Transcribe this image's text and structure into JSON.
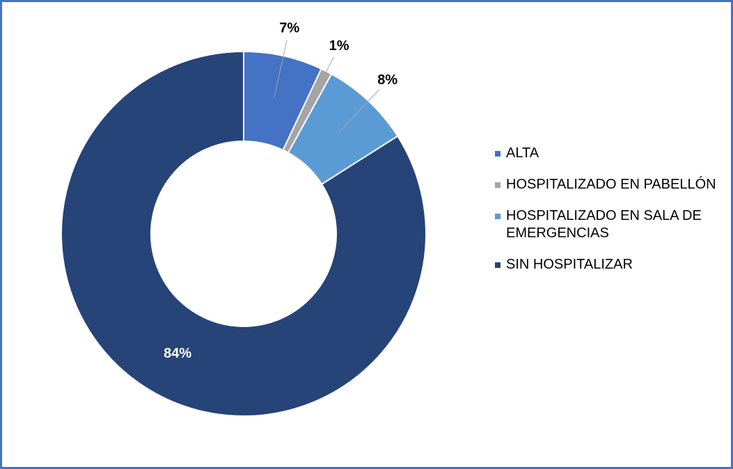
{
  "chart_data": {
    "type": "donut",
    "categories": [
      "ALTA",
      "HOSPITALIZADO EN PABELLÓN",
      "HOSPITALIZADO EN SALA DE EMERGENCIAS",
      "SIN HOSPITALIZAR"
    ],
    "values": [
      7,
      1,
      8,
      84
    ],
    "value_labels": [
      "7%",
      "1%",
      "8%",
      "84%"
    ],
    "colors": [
      "#4472c4",
      "#a5a5a5",
      "#5b9bd5",
      "#264478"
    ],
    "legend": "right"
  }
}
